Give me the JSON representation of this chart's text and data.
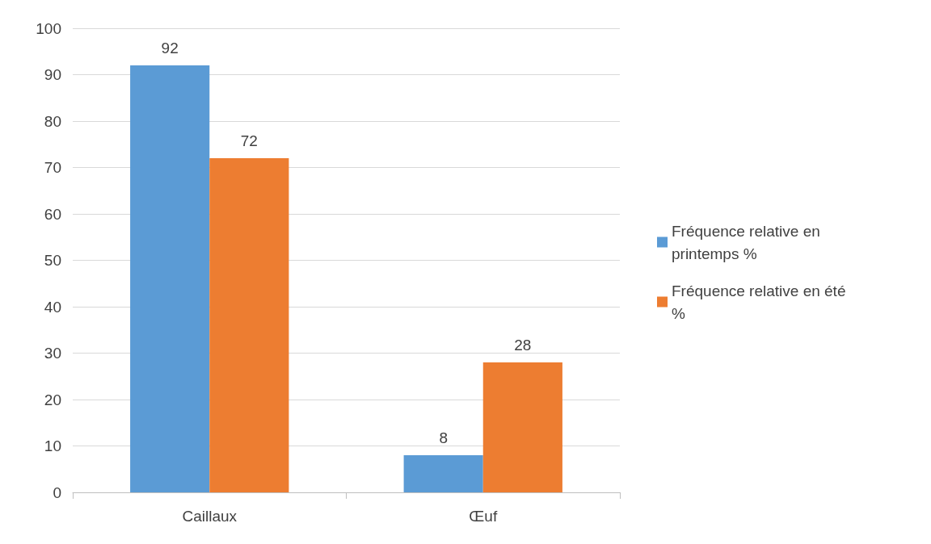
{
  "chart_data": {
    "type": "bar",
    "categories": [
      "Caillaux",
      "Œuf"
    ],
    "series": [
      {
        "name": "Fréquence relative en printemps %",
        "color": "#5b9bd5",
        "values": [
          92,
          8
        ]
      },
      {
        "name": "Fréquence relative en été %",
        "color": "#ed7d31",
        "values": [
          72,
          28
        ]
      }
    ],
    "ylim": [
      0,
      100
    ],
    "yticks": [
      0,
      10,
      20,
      30,
      40,
      50,
      60,
      70,
      80,
      90,
      100
    ],
    "grid": "y",
    "legend": "right",
    "data_labels": true
  }
}
